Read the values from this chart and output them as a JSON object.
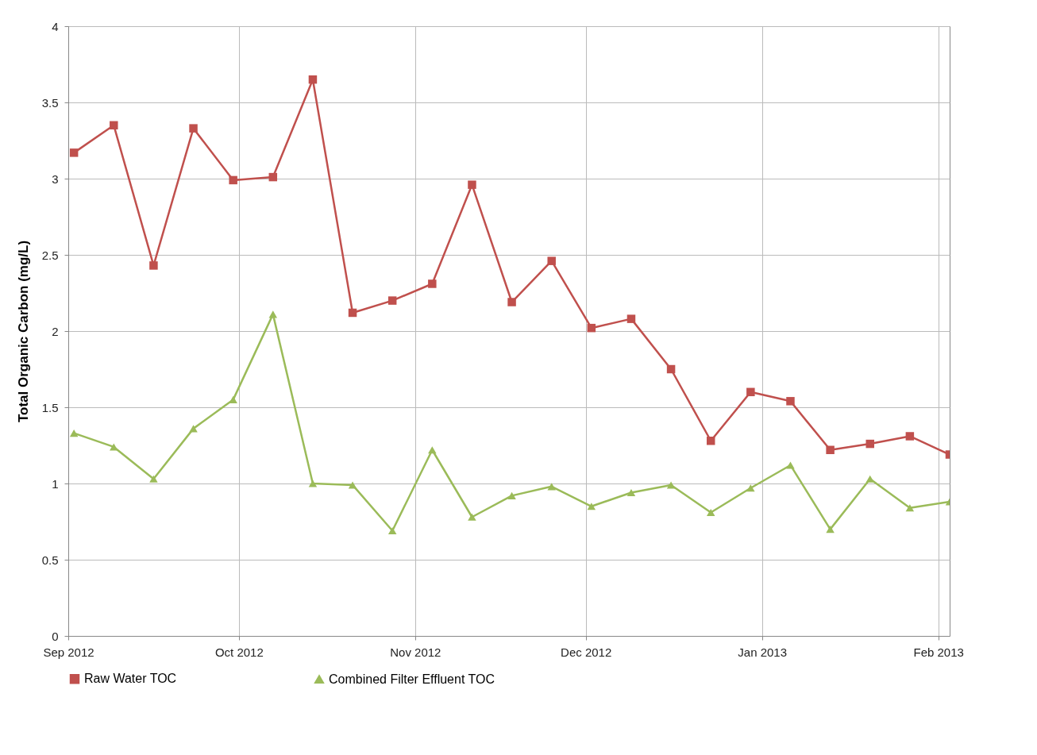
{
  "chart_data": {
    "type": "line",
    "ylabel": "Total Organic Carbon (mg/L)",
    "x": [
      "2012-09-02",
      "2012-09-09",
      "2012-09-16",
      "2012-09-23",
      "2012-09-30",
      "2012-10-07",
      "2012-10-14",
      "2012-10-21",
      "2012-10-28",
      "2012-11-04",
      "2012-11-11",
      "2012-11-18",
      "2012-11-25",
      "2012-12-02",
      "2012-12-09",
      "2012-12-16",
      "2012-12-23",
      "2012-12-30",
      "2013-01-06",
      "2013-01-13",
      "2013-01-20",
      "2013-01-27",
      "2013-02-03"
    ],
    "series": [
      {
        "name": "Raw Water TOC",
        "color": "#c0504d",
        "marker": "square",
        "values": [
          3.17,
          3.35,
          2.43,
          3.33,
          2.99,
          3.01,
          3.65,
          2.12,
          2.2,
          2.31,
          2.96,
          2.19,
          2.46,
          2.02,
          2.08,
          1.75,
          1.28,
          1.6,
          1.54,
          1.22,
          1.26,
          1.31,
          1.19
        ]
      },
      {
        "name": "Combined Filter Effluent TOC",
        "color": "#9bbb59",
        "marker": "triangle",
        "values": [
          1.33,
          1.24,
          1.03,
          1.36,
          1.55,
          2.11,
          1.0,
          0.99,
          0.69,
          1.22,
          0.78,
          0.92,
          0.98,
          0.85,
          0.94,
          0.99,
          0.81,
          0.97,
          1.12,
          0.7,
          1.03,
          0.84,
          0.88
        ]
      }
    ],
    "xlim": [
      "2012-09-01",
      "2013-02-03"
    ],
    "xticks": [
      {
        "value": "2012-09-01",
        "label": "Sep 2012"
      },
      {
        "value": "2012-10-01",
        "label": "Oct 2012"
      },
      {
        "value": "2012-11-01",
        "label": "Nov 2012"
      },
      {
        "value": "2012-12-01",
        "label": "Dec 2012"
      },
      {
        "value": "2013-01-01",
        "label": "Jan 2013"
      },
      {
        "value": "2013-02-01",
        "label": "Feb 2013"
      }
    ],
    "ylim": [
      0,
      4
    ],
    "yticks": [
      0,
      0.5,
      1,
      1.5,
      2,
      2.5,
      3,
      3.5,
      4
    ],
    "grid": true,
    "legend": "bottom"
  }
}
